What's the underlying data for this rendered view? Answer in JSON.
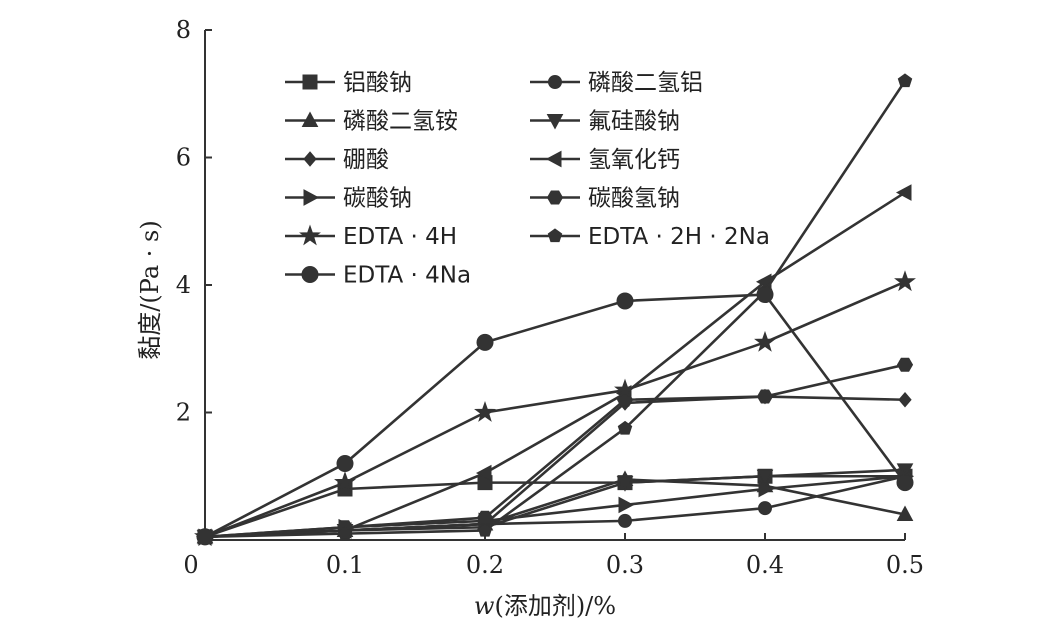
{
  "chart_data": {
    "type": "line",
    "title": "",
    "xlabel_italic": "w",
    "xlabel_rest": "(添加剂)/%",
    "ylabel": "黏度/(Pa · s)",
    "xlim": [
      0,
      0.5
    ],
    "ylim": [
      0,
      8
    ],
    "x_tick_values": [
      0.1,
      0.2,
      0.3,
      0.4,
      0.5
    ],
    "x_tick_labels": [
      "0.1",
      "0.2",
      "0.3",
      "0.4",
      "0.5"
    ],
    "y_tick_values": [
      2,
      4,
      6,
      8
    ],
    "y_tick_labels": [
      "2",
      "4",
      "6",
      "8"
    ],
    "origin_label": "0",
    "grid": false,
    "legend_position": "top-left",
    "series": [
      {
        "name": "铝酸钠",
        "marker": "square",
        "x": [
          0,
          0.1,
          0.2,
          0.3,
          0.4,
          0.5
        ],
        "values": [
          0.05,
          0.8,
          0.9,
          0.9,
          1.0,
          1.0
        ]
      },
      {
        "name": "磷酸二氢铝",
        "marker": "circle",
        "x": [
          0,
          0.1,
          0.2,
          0.3,
          0.4,
          0.5
        ],
        "values": [
          0.05,
          0.15,
          0.25,
          0.3,
          0.5,
          1.0
        ]
      },
      {
        "name": "磷酸二氢铵",
        "marker": "triangle-up",
        "x": [
          0,
          0.1,
          0.2,
          0.3,
          0.4,
          0.5
        ],
        "values": [
          0.05,
          0.15,
          0.25,
          0.95,
          0.85,
          0.4
        ]
      },
      {
        "name": "氟硅酸钠",
        "marker": "triangle-down",
        "x": [
          0,
          0.1,
          0.2,
          0.3,
          0.4,
          0.5
        ],
        "values": [
          0.05,
          0.15,
          0.2,
          0.9,
          1.0,
          1.1
        ]
      },
      {
        "name": "硼酸",
        "marker": "diamond",
        "x": [
          0,
          0.1,
          0.2,
          0.3,
          0.4,
          0.5
        ],
        "values": [
          0.05,
          0.15,
          0.25,
          2.15,
          2.25,
          2.2
        ]
      },
      {
        "name": "氢氧化钙",
        "marker": "triangle-left",
        "x": [
          0,
          0.1,
          0.2,
          0.3,
          0.4,
          0.5
        ],
        "values": [
          0.05,
          0.15,
          1.05,
          2.3,
          4.05,
          5.45
        ]
      },
      {
        "name": "碳酸钠",
        "marker": "triangle-right",
        "x": [
          0,
          0.1,
          0.2,
          0.3,
          0.4,
          0.5
        ],
        "values": [
          0.05,
          0.2,
          0.3,
          0.55,
          0.8,
          1.0
        ]
      },
      {
        "name": "碳酸氢钠",
        "marker": "hexagon",
        "x": [
          0,
          0.1,
          0.2,
          0.3,
          0.4,
          0.5
        ],
        "values": [
          0.05,
          0.2,
          0.35,
          2.2,
          2.25,
          2.75
        ]
      },
      {
        "name": "EDTA · 4H",
        "marker": "star",
        "x": [
          0,
          0.1,
          0.2,
          0.3,
          0.4,
          0.5
        ],
        "values": [
          0.05,
          0.9,
          2.0,
          2.35,
          3.1,
          4.05
        ]
      },
      {
        "name": "EDTA · 2H · 2Na",
        "marker": "pentagon",
        "x": [
          0,
          0.1,
          0.2,
          0.3,
          0.4,
          0.5
        ],
        "values": [
          0.05,
          0.1,
          0.15,
          1.75,
          3.9,
          7.2
        ]
      },
      {
        "name": "EDTA · 4Na",
        "marker": "circle-large",
        "x": [
          0,
          0.1,
          0.2,
          0.3,
          0.4,
          0.5
        ],
        "values": [
          0.05,
          1.2,
          3.1,
          3.75,
          3.85,
          0.9
        ]
      }
    ]
  }
}
